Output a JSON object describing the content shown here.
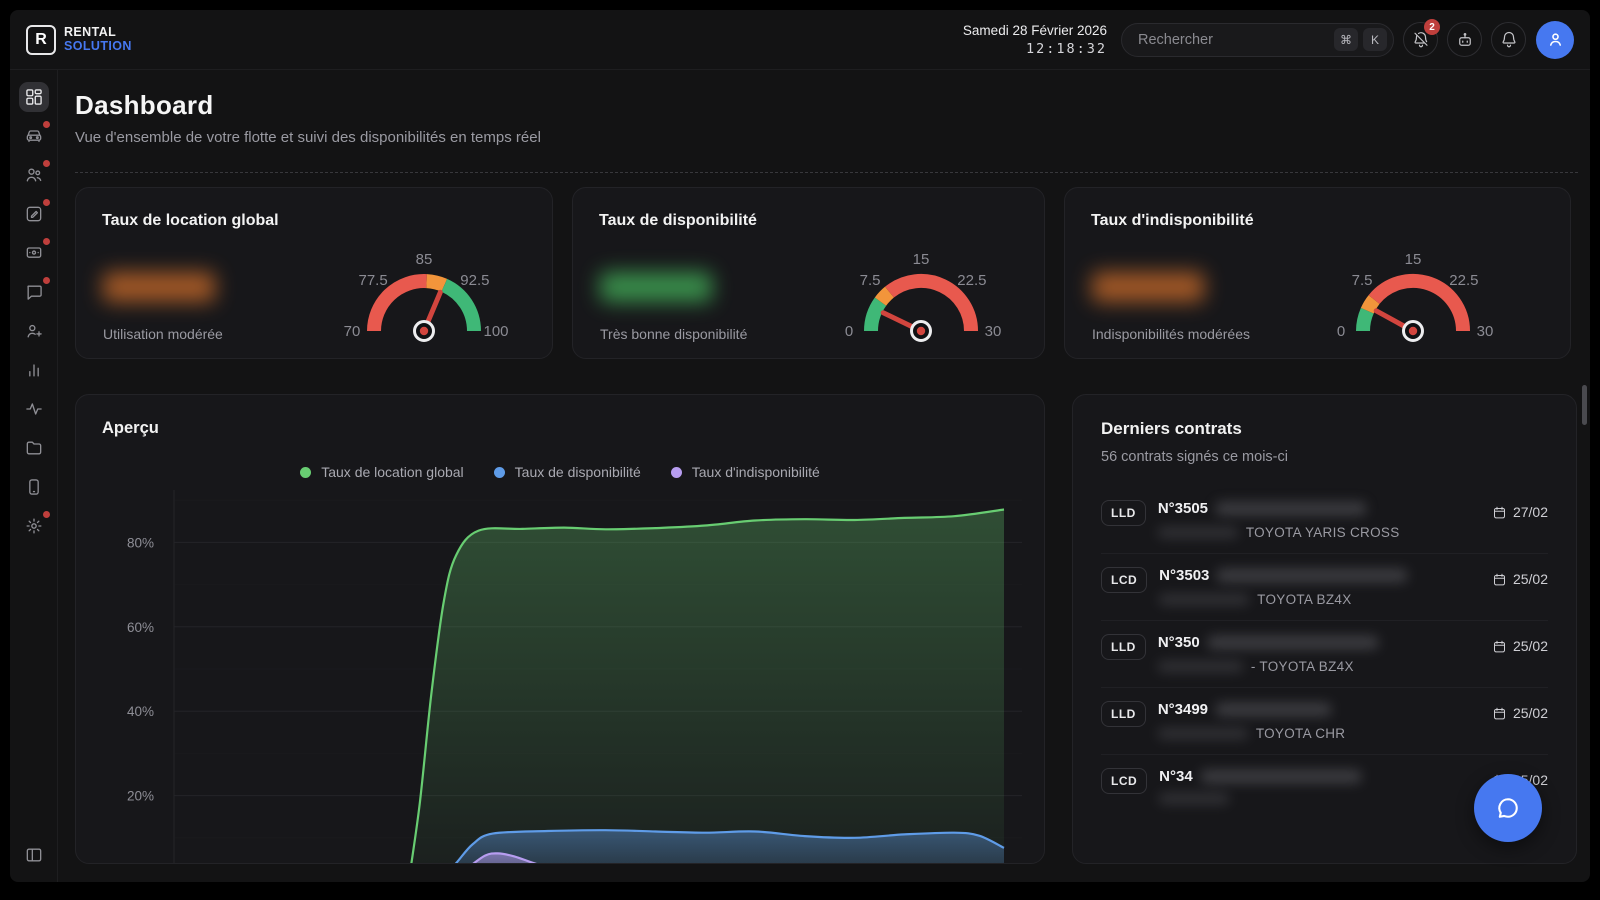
{
  "topbar": {
    "logo_letter": "R",
    "logo_line1": "RENTAL",
    "logo_line2": "SOLUTION",
    "date": "Samedi 28 Février 2026",
    "time": "12:18:32",
    "search_placeholder": "Rechercher",
    "shortcut_mod": "⌘",
    "shortcut_key": "K",
    "notification_badge": "2"
  },
  "sidebar": {
    "items": [
      {
        "name": "dashboard",
        "active": true,
        "dot": false
      },
      {
        "name": "vehicles",
        "active": false,
        "dot": true
      },
      {
        "name": "clients",
        "active": false,
        "dot": true
      },
      {
        "name": "contracts",
        "active": false,
        "dot": true
      },
      {
        "name": "payments",
        "active": false,
        "dot": true
      },
      {
        "name": "messages",
        "active": false,
        "dot": true
      },
      {
        "name": "add-user",
        "active": false,
        "dot": false
      },
      {
        "name": "stats",
        "active": false,
        "dot": false
      },
      {
        "name": "activity",
        "active": false,
        "dot": false
      },
      {
        "name": "documents",
        "active": false,
        "dot": false
      },
      {
        "name": "mobile",
        "active": false,
        "dot": false
      },
      {
        "name": "settings",
        "active": false,
        "dot": true
      }
    ]
  },
  "page": {
    "title": "Dashboard",
    "subtitle": "Vue d'ensemble de votre flotte et suivi des disponibilités en temps réel"
  },
  "gauges": [
    {
      "title": "Taux de location global",
      "status": "Utilisation modérée",
      "value_blurred": true,
      "value_color": "#b05f28",
      "min": 70,
      "max": 100,
      "ticks": [
        70,
        77.5,
        85,
        92.5,
        100
      ],
      "segments": [
        {
          "from": 70,
          "to": 85.5,
          "color": "#e8594e"
        },
        {
          "from": 85.5,
          "to": 89,
          "color": "#f2953b"
        },
        {
          "from": 89,
          "to": 100,
          "color": "#3fb877"
        }
      ],
      "needle": 88.8
    },
    {
      "title": "Taux de disponibilité",
      "status": "Très bonne disponibilité",
      "value_blurred": true,
      "value_color": "#3d9a50",
      "min": 0,
      "max": 30,
      "ticks": [
        0,
        7.5,
        15,
        22.5,
        30
      ],
      "segments": [
        {
          "from": 0,
          "to": 6,
          "color": "#3fb877"
        },
        {
          "from": 6,
          "to": 8.5,
          "color": "#f2953b"
        },
        {
          "from": 8.5,
          "to": 30,
          "color": "#e8594e"
        }
      ],
      "needle": 4.3
    },
    {
      "title": "Taux d'indisponibilité",
      "status": "Indisponibilités modérées",
      "value_blurred": true,
      "value_color": "#b05f28",
      "min": 0,
      "max": 30,
      "ticks": [
        0,
        7.5,
        15,
        22.5,
        30
      ],
      "segments": [
        {
          "from": 0,
          "to": 4,
          "color": "#3fb877"
        },
        {
          "from": 4,
          "to": 6.5,
          "color": "#f2953b"
        },
        {
          "from": 6.5,
          "to": 30,
          "color": "#e8594e"
        }
      ],
      "needle": 4.8
    }
  ],
  "chart_data": {
    "type": "area",
    "title": "Aperçu",
    "ylim": [
      0,
      100
    ],
    "y_ticks": [
      {
        "value": 20,
        "label": "20%"
      },
      {
        "value": 40,
        "label": "40%"
      },
      {
        "value": 60,
        "label": "60%"
      },
      {
        "value": 80,
        "label": "80%"
      }
    ],
    "minor_gridlines": [
      10,
      30,
      50,
      70,
      90
    ],
    "legend_position": "top-center",
    "series": [
      {
        "name": "Taux de location global",
        "color": "#68cd72",
        "points": [
          [
            0.283,
            0
          ],
          [
            0.296,
            18
          ],
          [
            0.31,
            44
          ],
          [
            0.325,
            66
          ],
          [
            0.34,
            77
          ],
          [
            0.367,
            82.8
          ],
          [
            0.42,
            83.2
          ],
          [
            0.47,
            83.5
          ],
          [
            0.52,
            83.1
          ],
          [
            0.58,
            83.4
          ],
          [
            0.64,
            84.0
          ],
          [
            0.7,
            85.2
          ],
          [
            0.76,
            85.5
          ],
          [
            0.82,
            85.3
          ],
          [
            0.88,
            85.8
          ],
          [
            0.94,
            86.2
          ],
          [
            1.0,
            87.8
          ]
        ]
      },
      {
        "name": "Taux de disponibilité",
        "color": "#5f9ce8",
        "points": [
          [
            0.322,
            0
          ],
          [
            0.34,
            4
          ],
          [
            0.36,
            8.5
          ],
          [
            0.384,
            11
          ],
          [
            0.45,
            11.6
          ],
          [
            0.52,
            11.8
          ],
          [
            0.58,
            11.5
          ],
          [
            0.64,
            11.2
          ],
          [
            0.7,
            11.5
          ],
          [
            0.76,
            10.4
          ],
          [
            0.82,
            10.0
          ],
          [
            0.88,
            10.8
          ],
          [
            0.94,
            11.2
          ],
          [
            0.97,
            10.5
          ],
          [
            1.0,
            7.6
          ]
        ]
      },
      {
        "name": "Taux d'indisponibilité",
        "color": "#b79df0",
        "points": [
          [
            0.336,
            0
          ],
          [
            0.355,
            3
          ],
          [
            0.375,
            5.8
          ],
          [
            0.39,
            6.3
          ],
          [
            0.41,
            5.6
          ],
          [
            0.44,
            3.6
          ],
          [
            0.47,
            2.4
          ],
          [
            0.52,
            1.8
          ],
          [
            0.58,
            1.4
          ],
          [
            0.7,
            1.2
          ],
          [
            0.85,
            1.1
          ],
          [
            1.0,
            1.0
          ]
        ]
      }
    ]
  },
  "contracts": {
    "title": "Derniers contrats",
    "subtitle": "56 contrats signés ce mois-ci",
    "rows": [
      {
        "type": "LLD",
        "number": "N°3505",
        "name_blurred": true,
        "vehicle": "TOYOTA YARIS CROSS",
        "date": "27/02"
      },
      {
        "type": "LCD",
        "number": "N°3503",
        "name_blurred": true,
        "vehicle": "TOYOTA BZ4X",
        "date": "25/02"
      },
      {
        "type": "LLD",
        "number": "N°350",
        "name_blurred": true,
        "vehicle": "- TOYOTA BZ4X",
        "date": "25/02"
      },
      {
        "type": "LLD",
        "number": "N°3499",
        "name_blurred": true,
        "vehicle": "TOYOTA CHR",
        "date": "25/02"
      },
      {
        "type": "LCD",
        "number": "N°34",
        "name_blurred": true,
        "vehicle": "",
        "date": "25/02"
      }
    ]
  },
  "colors": {
    "accent_blue": "#4678f0",
    "badge_red": "#bf3f3c",
    "gauge_red": "#e8594e",
    "gauge_orange": "#f2953b",
    "gauge_green": "#3fb877",
    "needle_red": "#d2453e"
  }
}
